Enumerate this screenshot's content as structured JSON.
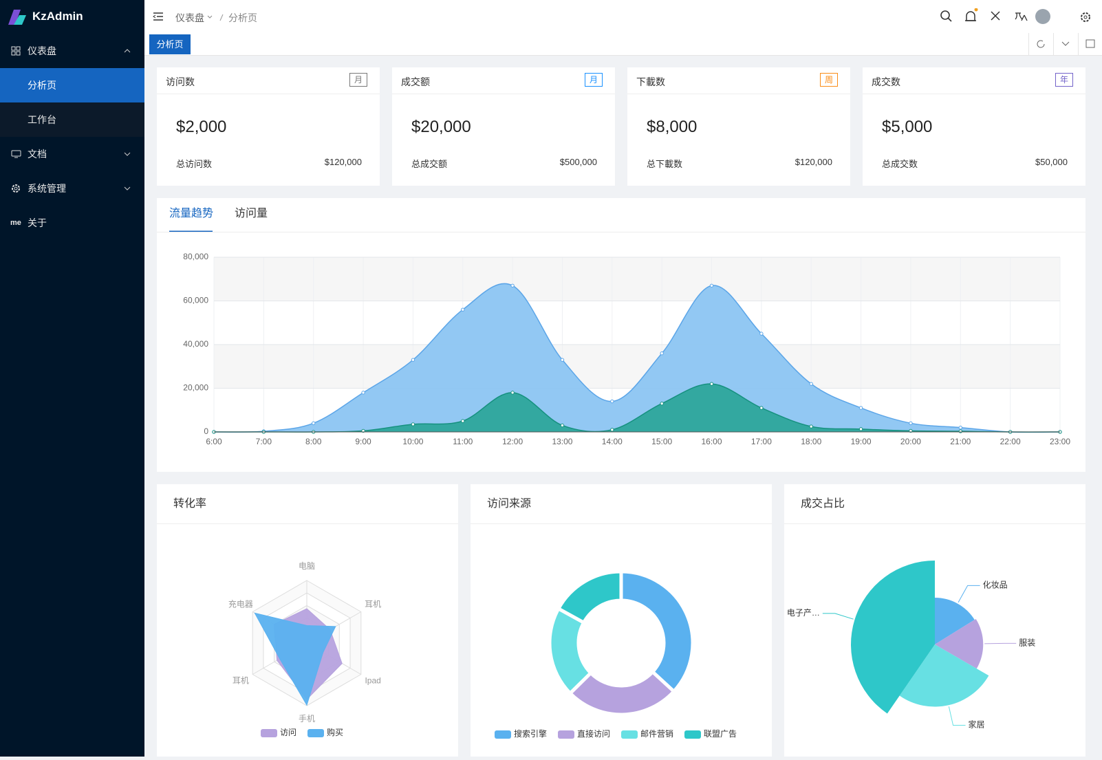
{
  "sidebar": {
    "brand": "KzAdmin",
    "menu": [
      {
        "label": "仪表盘",
        "children": [
          "分析页",
          "工作台"
        ]
      },
      {
        "label": "文档"
      },
      {
        "label": "系统管理"
      },
      {
        "label": "关于",
        "icon": "me"
      }
    ]
  },
  "header": {
    "breadcrumb": [
      "仪表盘",
      "分析页"
    ],
    "tab": "分析页"
  },
  "cards": [
    {
      "title": "访问数",
      "tag": "月",
      "tag_color": "#777777",
      "value": "$2,000",
      "total_label": "总访问数",
      "total": "$120,000"
    },
    {
      "title": "成交额",
      "tag": "月",
      "tag_color": "#1890ff",
      "value": "$20,000",
      "total_label": "总成交额",
      "total": "$500,000"
    },
    {
      "title": "下載数",
      "tag": "周",
      "tag_color": "#fa8c16",
      "value": "$8,000",
      "total_label": "总下載数",
      "total": "$120,000"
    },
    {
      "title": "成交数",
      "tag": "年",
      "tag_color": "#7262c9",
      "value": "$5,000",
      "total_label": "总成交数",
      "total": "$50,000"
    }
  ],
  "chart_data": [
    {
      "type": "line",
      "area": true,
      "tabs": [
        "流量趋势",
        "访问量"
      ],
      "categories": [
        "6:00",
        "7:00",
        "8:00",
        "9:00",
        "10:00",
        "11:00",
        "12:00",
        "13:00",
        "14:00",
        "15:00",
        "16:00",
        "17:00",
        "18:00",
        "19:00",
        "20:00",
        "21:00",
        "22:00",
        "23:00"
      ],
      "series": [
        {
          "color": "#5ba5e8",
          "fill": "#8cc5f2",
          "values": [
            0,
            300,
            4000,
            18000,
            33000,
            56000,
            67000,
            33000,
            14000,
            36000,
            67000,
            45000,
            22000,
            11000,
            4000,
            2000,
            0,
            0
          ]
        },
        {
          "color": "#16917f",
          "fill": "#2ea79b",
          "values": [
            0,
            0,
            0,
            500,
            3500,
            5000,
            18000,
            3000,
            1000,
            13000,
            22000,
            11000,
            2500,
            1300,
            500,
            300,
            0,
            0
          ]
        }
      ],
      "ylim": [
        0,
        80000
      ],
      "yticks": [
        0,
        {
          "value": 20000,
          "label": "20,000"
        },
        {
          "value": 40000,
          "label": "40,000"
        },
        {
          "value": 60000,
          "label": "60,000"
        },
        {
          "value": 80000,
          "label": "80,000"
        }
      ],
      "grid": true
    },
    {
      "type": "radar",
      "title": "转化率",
      "indicators": [
        "电脑",
        "耳机",
        "Ipad",
        "手机",
        "耳机",
        "充电器"
      ],
      "rlim": [
        0,
        100
      ],
      "series": [
        {
          "name": "访问",
          "color": "#b6a2de",
          "values": [
            55,
            43,
            65,
            90,
            55,
            60
          ]
        },
        {
          "name": "购买",
          "color": "#5ab1ef",
          "values": [
            28,
            53,
            30,
            99,
            50,
            96
          ]
        }
      ]
    },
    {
      "type": "pie",
      "title": "访问来源",
      "donut": true,
      "categories": [
        "搜索引擎",
        "直接访问",
        "邮件营销",
        "联盟广告"
      ],
      "values": [
        1048,
        735,
        580,
        484
      ],
      "colors": [
        "#5ab1ef",
        "#b6a2de",
        "#67e0e3",
        "#2ec7c9"
      ]
    },
    {
      "type": "pie",
      "title": "成交占比",
      "rose": true,
      "categories": [
        "化妆品",
        "服装",
        "家居",
        "电子产…"
      ],
      "values": [
        16,
        17,
        26,
        40
      ],
      "colors": [
        "#5ab1ef",
        "#b6a2de",
        "#67e0e3",
        "#2ec7c9"
      ]
    }
  ]
}
